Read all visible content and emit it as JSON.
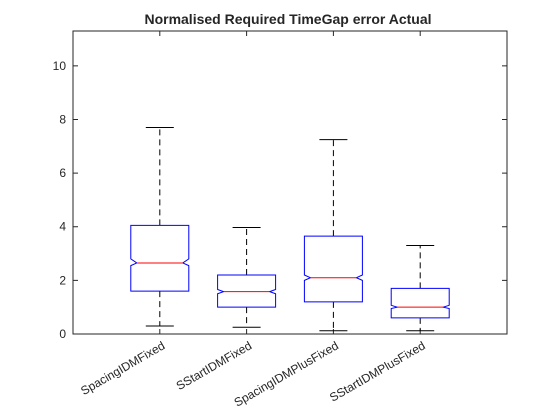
{
  "chart_data": {
    "type": "box",
    "title": "Normalised Required TimeGap error Actual",
    "xlabel": "",
    "ylabel": "",
    "ylim": [
      0,
      11.3
    ],
    "yticks": [
      0,
      2,
      4,
      6,
      8,
      10
    ],
    "ytick_labels": [
      "0",
      "2",
      "4",
      "6",
      "8",
      "10"
    ],
    "notched": true,
    "categories": [
      "SpacingIDMFixed",
      "SStartIDMFixed",
      "SpacingIDMPlusFixed",
      "SStartIDMPlusFixed"
    ],
    "boxes": [
      {
        "label": "SpacingIDMFixed",
        "whisker_low": 0.3,
        "q1": 1.6,
        "median": 2.65,
        "q3": 4.05,
        "whisker_high": 7.7,
        "notch_low": 2.55,
        "notch_high": 2.8
      },
      {
        "label": "SStartIDMFixed",
        "whisker_low": 0.25,
        "q1": 1.0,
        "median": 1.58,
        "q3": 2.2,
        "whisker_high": 3.97,
        "notch_low": 1.5,
        "notch_high": 1.66
      },
      {
        "label": "SpacingIDMPlusFixed",
        "whisker_low": 0.12,
        "q1": 1.2,
        "median": 2.1,
        "q3": 3.65,
        "whisker_high": 7.25,
        "notch_low": 2.0,
        "notch_high": 2.2
      },
      {
        "label": "SStartIDMPlusFixed",
        "whisker_low": 0.12,
        "q1": 0.6,
        "median": 1.0,
        "q3": 1.7,
        "whisker_high": 3.3,
        "notch_low": 0.95,
        "notch_high": 1.07
      }
    ],
    "colors": {
      "box": "#0000ff",
      "median": "#ff0000",
      "whisker": "#000000",
      "axes": "#262626"
    }
  }
}
